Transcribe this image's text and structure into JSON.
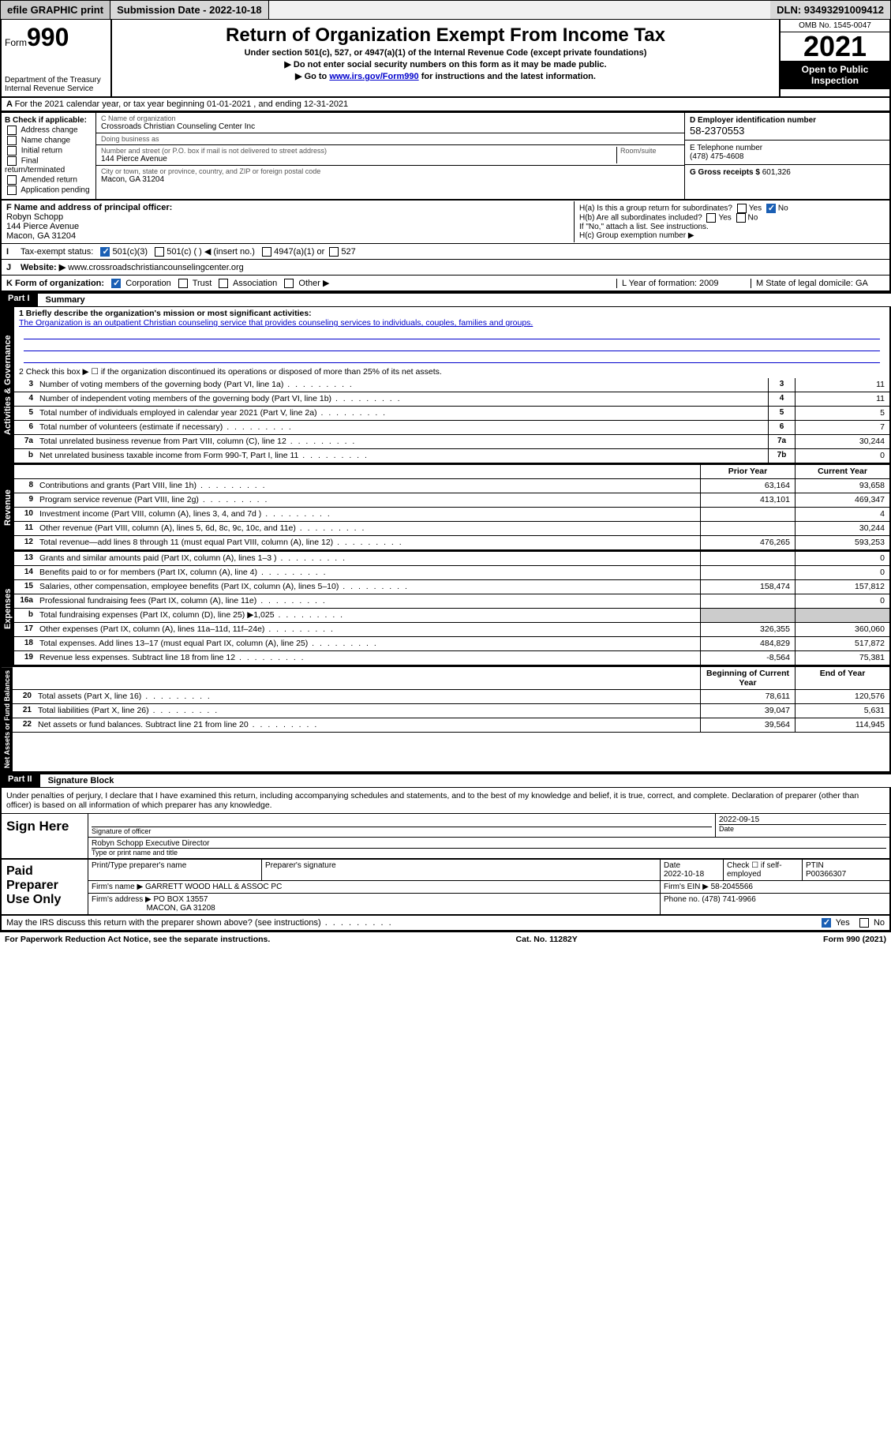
{
  "topbar": {
    "efile": "efile GRAPHIC print",
    "submission": "Submission Date - 2022-10-18",
    "dln": "DLN: 93493291009412"
  },
  "header": {
    "form_label": "Form",
    "form_number": "990",
    "title": "Return of Organization Exempt From Income Tax",
    "subtitle": "Under section 501(c), 527, or 4947(a)(1) of the Internal Revenue Code (except private foundations)",
    "note1": "▶ Do not enter social security numbers on this form as it may be made public.",
    "note2_pre": "▶ Go to ",
    "note2_link": "www.irs.gov/Form990",
    "note2_post": " for instructions and the latest information.",
    "dept": "Department of the Treasury\nInternal Revenue Service",
    "omb": "OMB No. 1545-0047",
    "year": "2021",
    "open": "Open to Public Inspection"
  },
  "line_a": "For the 2021 calendar year, or tax year beginning 01-01-2021   , and ending 12-31-2021",
  "box_b": {
    "title": "B Check if applicable:",
    "items": [
      "Address change",
      "Name change",
      "Initial return",
      "Final return/terminated",
      "Amended return",
      "Application pending"
    ]
  },
  "box_c": {
    "name_lbl": "C Name of organization",
    "name": "Crossroads Christian Counseling Center Inc",
    "dba_lbl": "Doing business as",
    "dba": "",
    "street_lbl": "Number and street (or P.O. box if mail is not delivered to street address)",
    "room_lbl": "Room/suite",
    "street": "144 Pierce Avenue",
    "city_lbl": "City or town, state or province, country, and ZIP or foreign postal code",
    "city": "Macon, GA  31204"
  },
  "box_d": {
    "lbl": "D Employer identification number",
    "val": "58-2370553"
  },
  "box_e": {
    "lbl": "E Telephone number",
    "val": "(478) 475-4608"
  },
  "box_g": {
    "lbl": "G Gross receipts $",
    "val": "601,326"
  },
  "box_f": {
    "lbl": "F Name and address of principal officer:",
    "name": "Robyn Schopp",
    "addr1": "144 Pierce Avenue",
    "addr2": "Macon, GA  31204"
  },
  "box_h": {
    "ha": "H(a)  Is this a group return for subordinates?",
    "ha_yes": "Yes",
    "ha_no": "No",
    "hb": "H(b)  Are all subordinates included?",
    "hb_yes": "Yes",
    "hb_no": "No",
    "hb_note": "If \"No,\" attach a list. See instructions.",
    "hc": "H(c)  Group exemption number ▶"
  },
  "line_i": {
    "lbl": "Tax-exempt status:",
    "o1": "501(c)(3)",
    "o2": "501(c) (  ) ◀ (insert no.)",
    "o3": "4947(a)(1) or",
    "o4": "527"
  },
  "line_j": {
    "lbl": "Website: ▶",
    "val": "www.crossroadschristiancounselingcenter.org"
  },
  "line_k": {
    "lbl": "K Form of organization:",
    "o1": "Corporation",
    "o2": "Trust",
    "o3": "Association",
    "o4": "Other ▶"
  },
  "line_l": "L Year of formation: 2009",
  "line_m": "M State of legal domicile: GA",
  "part1": {
    "num": "Part I",
    "title": "Summary"
  },
  "mission": {
    "lbl": "1  Briefly describe the organization's mission or most significant activities:",
    "text": "The Organization is an outpatient Christian counseling service that provides counseling services to individuals, couples, families and groups."
  },
  "line2": "2   Check this box ▶ ☐  if the organization discontinued its operations or disposed of more than 25% of its net assets.",
  "tabs": {
    "ag": "Activities & Governance",
    "rev": "Revenue",
    "exp": "Expenses",
    "net": "Net Assets or Fund Balances"
  },
  "rows_ag": [
    {
      "n": "3",
      "d": "Number of voting members of the governing body (Part VI, line 1a)",
      "box": "3",
      "v": "11"
    },
    {
      "n": "4",
      "d": "Number of independent voting members of the governing body (Part VI, line 1b)",
      "box": "4",
      "v": "11"
    },
    {
      "n": "5",
      "d": "Total number of individuals employed in calendar year 2021 (Part V, line 2a)",
      "box": "5",
      "v": "5"
    },
    {
      "n": "6",
      "d": "Total number of volunteers (estimate if necessary)",
      "box": "6",
      "v": "7"
    },
    {
      "n": "7a",
      "d": "Total unrelated business revenue from Part VIII, column (C), line 12",
      "box": "7a",
      "v": "30,244"
    },
    {
      "n": "b",
      "d": "Net unrelated business taxable income from Form 990-T, Part I, line 11",
      "box": "7b",
      "v": "0"
    }
  ],
  "year_hdr": {
    "prior": "Prior Year",
    "current": "Current Year"
  },
  "rows_rev": [
    {
      "n": "8",
      "d": "Contributions and grants (Part VIII, line 1h)",
      "p": "63,164",
      "c": "93,658"
    },
    {
      "n": "9",
      "d": "Program service revenue (Part VIII, line 2g)",
      "p": "413,101",
      "c": "469,347"
    },
    {
      "n": "10",
      "d": "Investment income (Part VIII, column (A), lines 3, 4, and 7d )",
      "p": "",
      "c": "4"
    },
    {
      "n": "11",
      "d": "Other revenue (Part VIII, column (A), lines 5, 6d, 8c, 9c, 10c, and 11e)",
      "p": "",
      "c": "30,244"
    },
    {
      "n": "12",
      "d": "Total revenue—add lines 8 through 11 (must equal Part VIII, column (A), line 12)",
      "p": "476,265",
      "c": "593,253"
    }
  ],
  "rows_exp": [
    {
      "n": "13",
      "d": "Grants and similar amounts paid (Part IX, column (A), lines 1–3 )",
      "p": "",
      "c": "0"
    },
    {
      "n": "14",
      "d": "Benefits paid to or for members (Part IX, column (A), line 4)",
      "p": "",
      "c": "0"
    },
    {
      "n": "15",
      "d": "Salaries, other compensation, employee benefits (Part IX, column (A), lines 5–10)",
      "p": "158,474",
      "c": "157,812"
    },
    {
      "n": "16a",
      "d": "Professional fundraising fees (Part IX, column (A), line 11e)",
      "p": "",
      "c": "0"
    },
    {
      "n": "b",
      "d": "Total fundraising expenses (Part IX, column (D), line 25) ▶1,025",
      "p": "—",
      "c": "—"
    },
    {
      "n": "17",
      "d": "Other expenses (Part IX, column (A), lines 11a–11d, 11f–24e)",
      "p": "326,355",
      "c": "360,060"
    },
    {
      "n": "18",
      "d": "Total expenses. Add lines 13–17 (must equal Part IX, column (A), line 25)",
      "p": "484,829",
      "c": "517,872"
    },
    {
      "n": "19",
      "d": "Revenue less expenses. Subtract line 18 from line 12",
      "p": "-8,564",
      "c": "75,381"
    }
  ],
  "net_hdr": {
    "begin": "Beginning of Current Year",
    "end": "End of Year"
  },
  "rows_net": [
    {
      "n": "20",
      "d": "Total assets (Part X, line 16)",
      "p": "78,611",
      "c": "120,576"
    },
    {
      "n": "21",
      "d": "Total liabilities (Part X, line 26)",
      "p": "39,047",
      "c": "5,631"
    },
    {
      "n": "22",
      "d": "Net assets or fund balances. Subtract line 21 from line 20",
      "p": "39,564",
      "c": "114,945"
    }
  ],
  "part2": {
    "num": "Part II",
    "title": "Signature Block"
  },
  "penalties": "Under penalties of perjury, I declare that I have examined this return, including accompanying schedules and statements, and to the best of my knowledge and belief, it is true, correct, and complete. Declaration of preparer (other than officer) is based on all information of which preparer has any knowledge.",
  "sign": {
    "here": "Sign Here",
    "sig_lbl": "Signature of officer",
    "date_lbl": "Date",
    "date": "2022-09-15",
    "name": "Robyn Schopp  Executive Director",
    "name_lbl": "Type or print name and title"
  },
  "prep": {
    "title": "Paid Preparer Use Only",
    "h1": "Print/Type preparer's name",
    "h2": "Preparer's signature",
    "h3": "Date",
    "date": "2022-10-18",
    "h4": "Check ☐ if self-employed",
    "h5": "PTIN",
    "ptin": "P00366307",
    "firm_name_lbl": "Firm's name    ▶",
    "firm_name": "GARRETT WOOD HALL & ASSOC PC",
    "firm_ein_lbl": "Firm's EIN ▶",
    "firm_ein": "58-2045566",
    "firm_addr_lbl": "Firm's address ▶",
    "firm_addr1": "PO BOX 13557",
    "firm_addr2": "MACON, GA  31208",
    "phone_lbl": "Phone no.",
    "phone": "(478) 741-9966"
  },
  "irs_discuss": {
    "q": "May the IRS discuss this return with the preparer shown above? (see instructions)",
    "yes": "Yes",
    "no": "No"
  },
  "footer": {
    "left": "For Paperwork Reduction Act Notice, see the separate instructions.",
    "mid": "Cat. No. 11282Y",
    "right": "Form 990 (2021)"
  }
}
